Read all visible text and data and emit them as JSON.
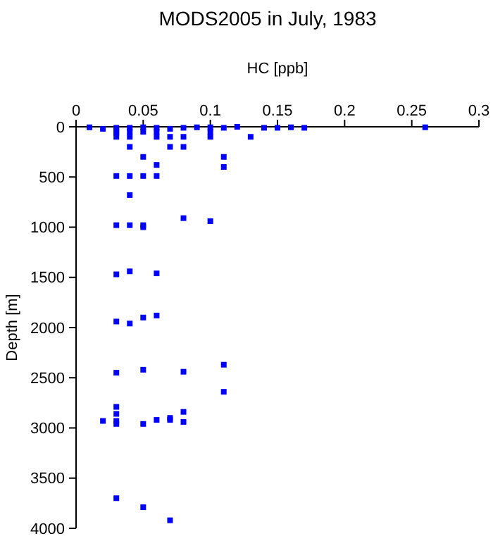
{
  "chart_data": {
    "type": "scatter",
    "title": "MODS2005 in July, 1983",
    "xlabel": "HC [ppb]",
    "ylabel": "Depth [m]",
    "x": [
      0.01,
      0.02,
      0.03,
      0.03,
      0.03,
      0.03,
      0.04,
      0.04,
      0.04,
      0.04,
      0.05,
      0.05,
      0.06,
      0.06,
      0.06,
      0.07,
      0.07,
      0.07,
      0.08,
      0.08,
      0.08,
      0.09,
      0.1,
      0.1,
      0.1,
      0.11,
      0.12,
      0.13,
      0.14,
      0.15,
      0.16,
      0.17,
      0.26,
      0.05,
      0.06,
      0.11,
      0.11,
      0.03,
      0.04,
      0.05,
      0.06,
      0.04,
      0.08,
      0.1,
      0.03,
      0.04,
      0.05,
      0.05,
      0.03,
      0.04,
      0.06,
      0.03,
      0.04,
      0.05,
      0.06,
      0.03,
      0.05,
      0.08,
      0.11,
      0.11,
      0.03,
      0.03,
      0.02,
      0.03,
      0.03,
      0.05,
      0.06,
      0.07,
      0.07,
      0.08,
      0.08,
      0.03,
      0.05,
      0.07
    ],
    "values": [
      5,
      20,
      10,
      40,
      60,
      100,
      10,
      50,
      100,
      200,
      5,
      50,
      10,
      50,
      100,
      20,
      100,
      200,
      10,
      100,
      200,
      5,
      5,
      50,
      100,
      10,
      0,
      100,
      10,
      10,
      5,
      10,
      5,
      300,
      380,
      300,
      400,
      490,
      490,
      490,
      490,
      680,
      910,
      940,
      980,
      980,
      980,
      1000,
      1470,
      1440,
      1460,
      1940,
      1960,
      1900,
      1880,
      2450,
      2420,
      2440,
      2370,
      2640,
      2790,
      2860,
      2930,
      2930,
      2960,
      2960,
      2920,
      2900,
      2920,
      2840,
      2940,
      3700,
      3790,
      3920
    ],
    "color": "#0000ff",
    "marker": "square",
    "xlim": [
      0,
      0.3
    ],
    "xticks": [
      0,
      0.05,
      0.1,
      0.15,
      0.2,
      0.25,
      0.3
    ],
    "ylim": [
      4000,
      0
    ],
    "yticks": [
      0,
      500,
      1000,
      1500,
      2000,
      2500,
      3000,
      3500,
      4000
    ],
    "grid": false
  }
}
